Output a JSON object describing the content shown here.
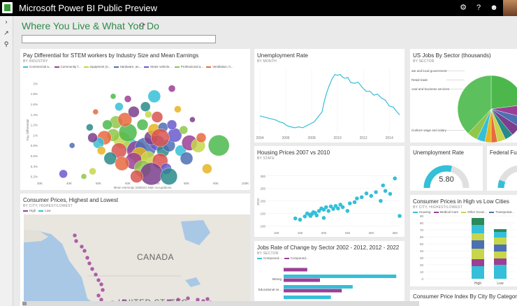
{
  "app": {
    "title": "Microsoft Power BI Public Preview"
  },
  "header": {
    "icons": [
      "gear-icon",
      "help-icon",
      "smiley-icon",
      "user-avatar"
    ]
  },
  "dashboard": {
    "title": "Where You Live & What You Do",
    "qa_placeholder": ""
  },
  "colors": {
    "accent": "#2e8a48",
    "teal": "#35bfd8",
    "purple": "#9b3f94",
    "green": "#4cb84c"
  },
  "tiles": {
    "stem": {
      "title": "Pay Differential for STEM workers by Industry Size and Mean Earnings",
      "subtitle": "BY INDUSTRY",
      "legend": [
        "Commercial a...",
        "Community f...",
        "equipment (e...",
        "Hardware, an...",
        "Motor vehicle...",
        "Professional a...",
        "Ventilation, h..."
      ],
      "legend_colors": [
        "#35bfd8",
        "#9b3f94",
        "#c7d64a",
        "#4d6fb3",
        "#6a5acd",
        "#8fc74a",
        "#e86a3f"
      ]
    },
    "unemployment_rate": {
      "title": "Unemployment Rate",
      "subtitle": "BY MONTH"
    },
    "jobs_by_sector": {
      "title": "US Jobs By Sector (thousands)",
      "subtitle": "BY SECTOR",
      "labels": [
        "ate and local government",
        "Retail trade",
        "onal and business services",
        "riculture wage and salary"
      ]
    },
    "unemployment_kpi": {
      "title": "Unemployment Rate",
      "value": "5.80"
    },
    "federal": {
      "title": "Federal Fu"
    },
    "housing": {
      "title": "Housing Prices 2007 vs 2010",
      "subtitle": "BY STATE"
    },
    "consumer_prices": {
      "title": "Consumer Prices, Highest and Lowest",
      "subtitle": "BY CITY, HIGHEST/LOWEST",
      "legend": [
        "High",
        "Low"
      ],
      "map_labels": [
        "CANADA",
        "UNITED STATES"
      ]
    },
    "jobs_change": {
      "title": "Jobs Rate of Change by Sector 2002 - 2012, 2012 - 2022",
      "subtitle": "BY SECTOR",
      "legend": [
        "Compound...",
        "Compound..."
      ],
      "rows": [
        "Mining",
        "Educational se..."
      ]
    },
    "cities": {
      "title": "Consumer Prices in High vs Low Cities",
      "subtitle": "BY CITY, HIGHEST/LOWEST",
      "legend": [
        "Housing",
        "Medical Care",
        "Other Good...",
        "Transportat..."
      ],
      "categories": [
        "High",
        "Low"
      ]
    },
    "cpi": {
      "title": "Consumer Price Index By City By Category"
    }
  },
  "chart_data": [
    {
      "type": "scatter",
      "title": "Pay Differential for STEM workers by Industry Size and Mean Earnings",
      "xlabel": "Mean earnings (dollars) S&E occupations",
      "ylabel": "Pay Differential",
      "x_ticks": [
        "30K",
        "40K",
        "50K",
        "60K",
        "70K",
        "80K",
        "90K",
        "100K"
      ],
      "y_ticks": [
        "2%",
        "1.8%",
        "1.6%",
        "1.4%",
        "1.2%",
        "1%",
        "0.8%",
        "0.6%",
        "0.4%",
        "0.2%"
      ],
      "xlim": [
        30000,
        100000
      ],
      "ylim": [
        0.1,
        2.1
      ],
      "points": [
        [
          61000,
          0.8,
          10
        ],
        [
          63000,
          0.7,
          14
        ],
        [
          58000,
          0.9,
          12
        ],
        [
          66000,
          0.75,
          15
        ],
        [
          70000,
          0.85,
          11
        ],
        [
          55000,
          1.0,
          9
        ],
        [
          52000,
          0.95,
          10
        ],
        [
          60000,
          1.05,
          13
        ],
        [
          64000,
          0.6,
          12
        ],
        [
          68000,
          0.95,
          10
        ],
        [
          72000,
          0.7,
          9
        ],
        [
          57000,
          0.7,
          11
        ],
        [
          50000,
          0.85,
          8
        ],
        [
          62000,
          0.5,
          12
        ],
        [
          67000,
          0.55,
          10
        ],
        [
          74000,
          0.8,
          9
        ],
        [
          76000,
          1.0,
          10
        ],
        [
          56000,
          1.25,
          9
        ],
        [
          59000,
          1.3,
          10
        ],
        [
          65000,
          1.2,
          8
        ],
        [
          69000,
          1.1,
          9
        ],
        [
          48000,
          0.95,
          7
        ],
        [
          54000,
          0.55,
          9
        ],
        [
          71000,
          0.5,
          11
        ],
        [
          78000,
          0.7,
          8
        ],
        [
          81000,
          0.85,
          11
        ],
        [
          84000,
          0.8,
          10
        ],
        [
          80000,
          0.55,
          9
        ],
        [
          73000,
          0.35,
          8
        ],
        [
          65000,
          0.35,
          12
        ],
        [
          58000,
          0.45,
          10
        ],
        [
          53000,
          1.2,
          7
        ],
        [
          51000,
          0.7,
          6
        ],
        [
          62000,
          1.45,
          8
        ],
        [
          66000,
          1.55,
          7
        ],
        [
          70000,
          1.35,
          8
        ],
        [
          57000,
          1.55,
          6
        ],
        [
          60000,
          1.7,
          5
        ],
        [
          67000,
          1.4,
          5
        ],
        [
          72000,
          1.15,
          7
        ],
        [
          75000,
          1.2,
          7
        ],
        [
          79000,
          1.1,
          6
        ],
        [
          85000,
          0.95,
          7
        ],
        [
          91000,
          0.8,
          15
        ],
        [
          87000,
          0.35,
          7
        ],
        [
          68000,
          0.25,
          16
        ],
        [
          74000,
          0.2,
          12
        ],
        [
          63000,
          0.2,
          9
        ],
        [
          69000,
          1.75,
          9
        ],
        [
          75000,
          1.9,
          5
        ],
        [
          48000,
          0.3,
          5
        ],
        [
          41000,
          0.8,
          4
        ],
        [
          38000,
          0.25,
          6
        ],
        [
          45000,
          0.2,
          4
        ],
        [
          49000,
          1.45,
          4
        ],
        [
          55000,
          1.75,
          4
        ],
        [
          77000,
          1.5,
          5
        ],
        [
          82000,
          1.3,
          4
        ],
        [
          47000,
          1.15,
          5
        ],
        [
          71000,
          0.95,
          13
        ]
      ]
    },
    {
      "type": "line",
      "title": "Unemployment Rate",
      "x_ticks": [
        "2004",
        "2006",
        "2008",
        "2010",
        "2012",
        "2014"
      ],
      "x": [
        2004.0,
        2004.3,
        2004.6,
        2004.9,
        2005.2,
        2005.5,
        2005.8,
        2006.1,
        2006.4,
        2006.7,
        2007.0,
        2007.3,
        2007.6,
        2007.9,
        2008.2,
        2008.5,
        2008.8,
        2009.0,
        2009.2,
        2009.4,
        2009.6,
        2009.8,
        2010.0,
        2010.2,
        2010.4,
        2010.6,
        2010.8,
        2011.0,
        2011.3,
        2011.6,
        2011.9,
        2012.2,
        2012.5,
        2012.8,
        2013.1,
        2013.4,
        2013.7,
        2014.0,
        2014.3,
        2014.6,
        2014.8
      ],
      "y": [
        5.7,
        5.6,
        5.5,
        5.4,
        5.3,
        5.1,
        5.0,
        4.7,
        4.6,
        4.5,
        4.6,
        4.5,
        4.7,
        4.9,
        5.1,
        5.6,
        6.1,
        7.3,
        8.2,
        8.9,
        9.5,
        9.9,
        9.8,
        9.9,
        9.6,
        9.5,
        9.6,
        9.1,
        9.0,
        9.1,
        8.6,
        8.2,
        8.2,
        7.8,
        7.9,
        7.5,
        7.3,
        6.7,
        6.6,
        6.1,
        5.8
      ]
    },
    {
      "type": "pie",
      "title": "US Jobs By Sector (thousands)",
      "values": [
        23,
        6,
        5,
        5,
        4,
        4,
        3,
        3,
        4,
        5,
        38
      ],
      "colors": [
        "#4cb84c",
        "#9b3f94",
        "#4d6fb3",
        "#7a3e8c",
        "#2a8a8a",
        "#c7d64a",
        "#e86a3f",
        "#e6b422",
        "#35bfd8",
        "#8fc74a",
        "#5cc05c"
      ]
    },
    {
      "type": "scatter",
      "title": "Housing Prices 2007 vs 2010",
      "ylabel": "2010",
      "x_ticks": [
        "100",
        "150",
        "200",
        "250",
        "300",
        "350"
      ],
      "y_ticks": [
        "300",
        "250",
        "200",
        "150",
        "100"
      ],
      "xlim": [
        80,
        360
      ],
      "ylim": [
        90,
        330
      ],
      "points": [
        [
          140,
          130
        ],
        [
          150,
          125
        ],
        [
          165,
          150
        ],
        [
          170,
          145
        ],
        [
          172,
          140
        ],
        [
          175,
          148
        ],
        [
          178,
          155
        ],
        [
          182,
          152
        ],
        [
          185,
          142
        ],
        [
          190,
          160
        ],
        [
          195,
          170
        ],
        [
          200,
          165
        ],
        [
          205,
          175
        ],
        [
          210,
          160
        ],
        [
          215,
          178
        ],
        [
          220,
          168
        ],
        [
          225,
          180
        ],
        [
          230,
          170
        ],
        [
          235,
          185
        ],
        [
          240,
          175
        ],
        [
          250,
          160
        ],
        [
          255,
          190
        ],
        [
          265,
          195
        ],
        [
          270,
          210
        ],
        [
          280,
          215
        ],
        [
          290,
          230
        ],
        [
          300,
          220
        ],
        [
          310,
          235
        ],
        [
          320,
          200
        ],
        [
          330,
          240
        ],
        [
          340,
          228
        ],
        [
          350,
          290
        ],
        [
          325,
          262
        ],
        [
          360,
          140
        ],
        [
          200,
          132
        ],
        [
          160,
          138
        ]
      ]
    },
    {
      "type": "bar",
      "title": "Jobs Rate of Change by Sector 2002 - 2012, 2012 - 2022",
      "categories": [
        "",
        "Mining",
        "Educational se...",
        ""
      ],
      "series": [
        {
          "name": "Compound...",
          "values": [
            0.0,
            0.62,
            0.38,
            0.26
          ]
        },
        {
          "name": "Compound...",
          "values": [
            0.13,
            0.2,
            0.32,
            0.0
          ]
        }
      ]
    },
    {
      "type": "bar",
      "title": "Consumer Prices in High vs Low Cities",
      "categories": [
        "High",
        "Low"
      ],
      "y_ticks": [
        "90",
        "80",
        "70",
        "60",
        "50",
        "40",
        "30",
        "20",
        "10",
        "0"
      ],
      "ylim": [
        0,
        90
      ],
      "series": [
        {
          "name": "Housing",
          "values": [
            18,
            20
          ]
        },
        {
          "name": "Medical Care",
          "values": [
            10,
            9
          ]
        },
        {
          "name": "Other Good...",
          "values": [
            15,
            10
          ]
        },
        {
          "name": "Transportat...",
          "values": [
            12,
            10
          ]
        },
        {
          "name": "",
          "values": [
            10,
            10
          ]
        },
        {
          "name": "",
          "values": [
            12,
            8
          ]
        },
        {
          "name": "",
          "values": [
            10,
            4
          ]
        }
      ],
      "colors": [
        "#35bfd8",
        "#9b3f94",
        "#c7d64a",
        "#4d6fb3",
        "#c7d64a",
        "#35bfd8",
        "#2a8a5a"
      ]
    }
  ]
}
